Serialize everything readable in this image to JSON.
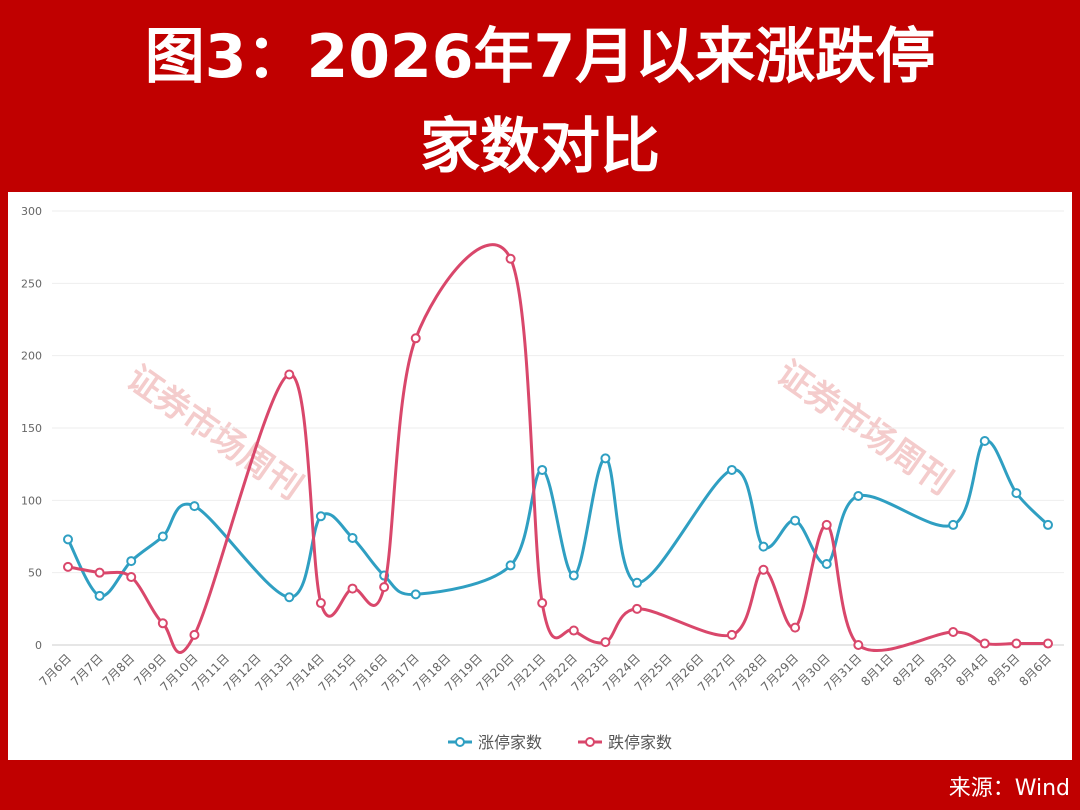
{
  "chart_data": {
    "type": "line",
    "title_lines": [
      "图3：2026年7月以来涨跌停",
      "家数对比"
    ],
    "source": "来源：Wind",
    "watermark": "证券市场周刊",
    "categories": [
      "7月6日",
      "7月7日",
      "7月8日",
      "7月9日",
      "7月10日",
      "7月11日",
      "7月12日",
      "7月13日",
      "7月14日",
      "7月15日",
      "7月16日",
      "7月17日",
      "7月18日",
      "7月19日",
      "7月20日",
      "7月21日",
      "7月22日",
      "7月23日",
      "7月24日",
      "7月25日",
      "7月26日",
      "7月27日",
      "7月28日",
      "7月29日",
      "7月30日",
      "7月31日",
      "8月1日",
      "8月2日",
      "8月3日",
      "8月4日",
      "8月5日",
      "8月6日"
    ],
    "series": [
      {
        "name": "涨停家数",
        "color": "#2f9fc2",
        "values": [
          73,
          34,
          58,
          75,
          96,
          null,
          null,
          33,
          89,
          74,
          48,
          35,
          null,
          null,
          55,
          121,
          48,
          129,
          43,
          null,
          null,
          121,
          68,
          86,
          56,
          103,
          null,
          null,
          83,
          141,
          105,
          83
        ]
      },
      {
        "name": "跌停家数",
        "color": "#d9476b",
        "values": [
          54,
          50,
          47,
          15,
          7,
          null,
          null,
          187,
          29,
          39,
          40,
          212,
          null,
          null,
          267,
          29,
          10,
          2,
          25,
          null,
          null,
          7,
          52,
          12,
          83,
          0,
          null,
          null,
          9,
          1,
          1,
          1
        ]
      }
    ],
    "connect_nulls": true,
    "smooth": true,
    "ylim": [
      0,
      300
    ],
    "yticks": [
      0,
      50,
      100,
      150,
      200,
      250,
      300
    ],
    "grid": true,
    "legend": "bottom"
  }
}
